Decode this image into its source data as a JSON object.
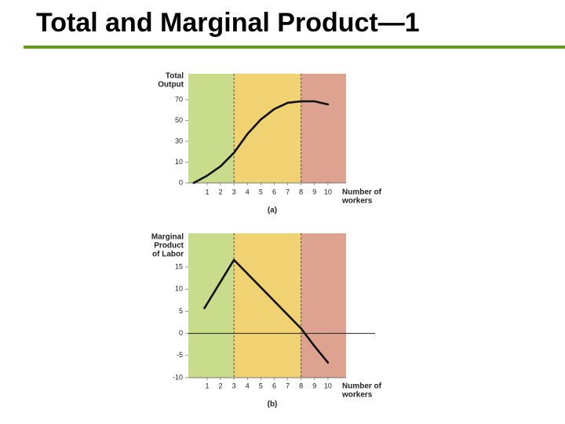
{
  "title": "Total and Marginal Product—1",
  "chart_data": [
    {
      "type": "line",
      "panel_label": "(a)",
      "ylabel_lines": [
        "Total",
        "Output"
      ],
      "xlabel_lines": [
        "Number of",
        "workers"
      ],
      "x": [
        0,
        1,
        2,
        3,
        4,
        5,
        6,
        7,
        8,
        9,
        10
      ],
      "values": [
        0,
        3.5,
        8,
        19,
        37,
        51,
        61,
        67,
        68.5,
        68.5,
        65.5
      ],
      "color": "#111111",
      "xlim": [
        -0.4,
        11.35
      ],
      "xticks": [
        1,
        2,
        3,
        4,
        5,
        6,
        7,
        8,
        9,
        10
      ],
      "ylim": [
        0,
        95
      ],
      "yticks": [
        0,
        10,
        30,
        50,
        70
      ],
      "bands": [
        {
          "xlim": [
            -0.4,
            3
          ],
          "color": "#c9dc8b"
        },
        {
          "xlim": [
            3,
            8
          ],
          "color": "#f0d273"
        },
        {
          "xlim": [
            8,
            11.35
          ],
          "color": "#dea390"
        }
      ],
      "vlines": [
        3,
        8
      ]
    },
    {
      "type": "line",
      "panel_label": "(b)",
      "ylabel_lines": [
        "Marginal",
        "Product",
        "of Labor"
      ],
      "xlabel_lines": [
        "Number of",
        "workers"
      ],
      "x": [
        0.8,
        3,
        8,
        9,
        10
      ],
      "values": [
        5.7,
        16.6,
        1.1,
        -2.9,
        -6.6
      ],
      "color": "#111111",
      "xlim": [
        -0.4,
        11.35
      ],
      "xticks": [
        1,
        2,
        3,
        4,
        5,
        6,
        7,
        8,
        9,
        10
      ],
      "ylim": [
        -10,
        22.6
      ],
      "yticks": [
        -10,
        -5,
        0,
        5,
        10,
        15
      ],
      "bands": [
        {
          "xlim": [
            -0.4,
            3
          ],
          "color": "#c9dc8b"
        },
        {
          "xlim": [
            3,
            8
          ],
          "color": "#f0d273"
        },
        {
          "xlim": [
            8,
            11.35
          ],
          "color": "#dea390"
        }
      ],
      "vlines": [
        3,
        8
      ],
      "hline": 0
    }
  ]
}
